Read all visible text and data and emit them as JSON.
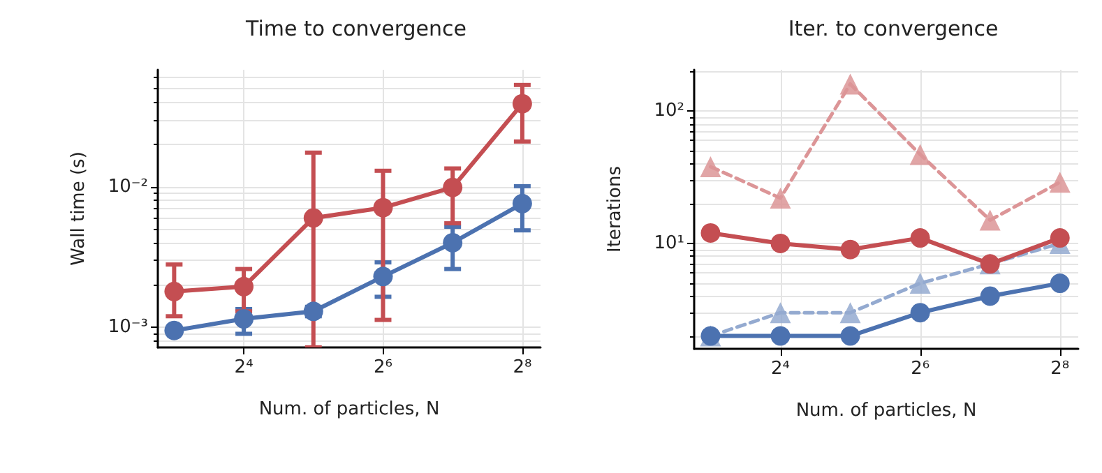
{
  "chart_data": [
    {
      "type": "line",
      "title": "Time to convergence",
      "xlabel": "Num. of particles, N",
      "ylabel": "Wall time (s)",
      "log": "xy",
      "grid": true,
      "x": [
        8,
        16,
        32,
        64,
        128,
        256
      ],
      "xlim": [
        6.8,
        307
      ],
      "xticks": [
        {
          "value": 16,
          "label": "2⁴"
        },
        {
          "value": 64,
          "label": "2⁶"
        },
        {
          "value": 256,
          "label": "2⁸"
        }
      ],
      "ylim": [
        0.00072,
        0.068
      ],
      "yticks": [
        {
          "value": 0.001,
          "label": "10⁻³"
        },
        {
          "value": 0.01,
          "label": "10⁻²"
        }
      ],
      "series": [
        {
          "color": "#4c72b0",
          "marker": "circle",
          "line_style": "solid",
          "values": [
            0.00095,
            0.00115,
            0.0013,
            0.0023,
            0.004,
            0.0076
          ],
          "errors": [
            null,
            [
              0.0009,
              0.00135
            ],
            [
              0.0012,
              0.0014
            ],
            [
              0.00165,
              0.0029
            ],
            [
              0.0026,
              0.0052
            ],
            [
              0.0049,
              0.0101
            ]
          ]
        },
        {
          "color": "#c44e52",
          "marker": "circle",
          "line_style": "solid",
          "values": [
            0.0018,
            0.00195,
            0.006,
            0.0071,
            0.0099,
            0.039
          ],
          "errors": [
            [
              0.0012,
              0.0028
            ],
            [
              0.0013,
              0.0026
            ],
            [
              0.00072,
              0.0175
            ],
            [
              0.00113,
              0.013
            ],
            [
              0.0055,
              0.0135
            ],
            [
              0.021,
              0.053
            ]
          ]
        }
      ]
    },
    {
      "type": "line",
      "title": "Iter. to convergence",
      "xlabel": "Num. of particles, N",
      "ylabel": "Iterations",
      "log": "xy",
      "grid": true,
      "x": [
        8,
        16,
        32,
        64,
        128,
        256
      ],
      "xlim": [
        6.8,
        307
      ],
      "xticks": [
        {
          "value": 16,
          "label": "2⁴"
        },
        {
          "value": 64,
          "label": "2⁶"
        },
        {
          "value": 256,
          "label": "2⁸"
        }
      ],
      "ylim": [
        1.6,
        205
      ],
      "yticks": [
        {
          "value": 10,
          "label": "10¹"
        },
        {
          "value": 100,
          "label": "10²"
        }
      ],
      "series": [
        {
          "color": "#dc9597",
          "marker": "triangle",
          "line_style": "dashed",
          "values": [
            38,
            22,
            160,
            47,
            15,
            29
          ]
        },
        {
          "color": "#94aad0",
          "marker": "triangle",
          "line_style": "dashed",
          "values": [
            2,
            3,
            3,
            5,
            7,
            10
          ]
        },
        {
          "color": "#c44e52",
          "marker": "circle",
          "line_style": "solid",
          "values": [
            12,
            10,
            9,
            11,
            7,
            11
          ]
        },
        {
          "color": "#4c72b0",
          "marker": "circle",
          "line_style": "solid",
          "values": [
            2,
            2,
            2,
            3,
            4,
            5
          ]
        }
      ]
    }
  ]
}
